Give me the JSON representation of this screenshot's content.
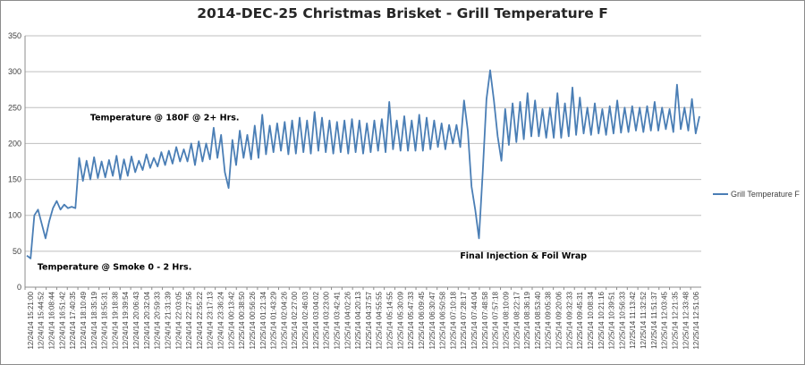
{
  "chart_data": {
    "type": "line",
    "title": "2014-DEC-25 Christmas Brisket - Grill Temperature F",
    "xlabel": "",
    "ylabel": "",
    "ylim": [
      0,
      350
    ],
    "y_ticks": [
      0,
      50,
      100,
      150,
      200,
      250,
      300,
      350
    ],
    "grid": "horizontal",
    "legend_placement": "right",
    "series_color": "#4a7eb5",
    "x_tick_labels": [
      "12/24/14 15:21:00",
      "12/24/14 15:44:52",
      "12/24/14 16:08:44",
      "12/24/14 16:51:42",
      "12/24/14 17:40:35",
      "12/24/14 18:10:49",
      "12/24/14 18:35:19",
      "12/24/14 18:55:31",
      "12/24/14 19:18:38",
      "12/24/14 19:39:54",
      "12/24/14 20:06:43",
      "12/24/14 20:32:04",
      "12/24/14 20:59:33",
      "12/24/14 21:31:39",
      "12/24/14 22:03:05",
      "12/24/14 22:27:56",
      "12/24/14 22:55:22",
      "12/24/14 23:17:13",
      "12/24/14 23:36:24",
      "12/25/14 00:13:42",
      "12/25/14 00:38:50",
      "12/25/14 00:56:26",
      "12/25/14 01:21:34",
      "12/25/14 01:43:29",
      "12/25/14 02:04:26",
      "12/25/14 02:27:00",
      "12/25/14 02:46:03",
      "12/25/14 03:04:02",
      "12/25/14 03:23:00",
      "12/25/14 03:42:41",
      "12/25/14 04:02:26",
      "12/25/14 04:20:13",
      "12/25/14 04:37:57",
      "12/25/14 04:55:55",
      "12/25/14 05:14:55",
      "12/25/14 05:30:09",
      "12/25/14 05:47:33",
      "12/25/14 06:09:45",
      "12/25/14 06:30:47",
      "12/25/14 06:50:58",
      "12/25/14 07:10:18",
      "12/25/14 07:28:17",
      "12/25/14 07:44:04",
      "12/25/14 07:48:58",
      "12/25/14 07:57:18",
      "12/25/14 08:10:09",
      "12/25/14 08:22:17",
      "12/25/14 08:36:19",
      "12/25/14 08:53:40",
      "12/25/14 09:05:38",
      "12/25/14 09:20:06",
      "12/25/14 09:32:33",
      "12/25/14 09:45:31",
      "12/25/14 10:08:34",
      "12/25/14 10:21:16",
      "12/25/14 10:39:51",
      "12/25/14 10:56:33",
      "12/25/14 11:13:42",
      "12/25/14 11:32:52",
      "12/25/14 11:51:37",
      "12/25/14 12:03:45",
      "12/25/14 12:21:35",
      "12/25/14 12:33:48",
      "12/25/14 12:51:06"
    ],
    "series": [
      {
        "name": "Grill Temperature F",
        "values": [
          44,
          40,
          100,
          108,
          88,
          68,
          92,
          110,
          120,
          108,
          115,
          110,
          112,
          110,
          180,
          148,
          176,
          150,
          181,
          152,
          175,
          153,
          177,
          155,
          183,
          150,
          178,
          155,
          182,
          160,
          176,
          163,
          185,
          166,
          180,
          168,
          188,
          170,
          190,
          172,
          195,
          175,
          192,
          175,
          200,
          170,
          203,
          175,
          200,
          178,
          222,
          180,
          212,
          160,
          138,
          205,
          170,
          218,
          180,
          212,
          178,
          225,
          180,
          240,
          185,
          225,
          188,
          228,
          190,
          230,
          185,
          232,
          186,
          236,
          188,
          232,
          186,
          244,
          190,
          236,
          188,
          232,
          186,
          230,
          188,
          232,
          186,
          234,
          188,
          232,
          186,
          228,
          188,
          232,
          190,
          234,
          188,
          258,
          192,
          232,
          190,
          238,
          190,
          232,
          190,
          240,
          190,
          236,
          192,
          232,
          195,
          228,
          192,
          226,
          200,
          226,
          195,
          260,
          218,
          140,
          108,
          68,
          160,
          262,
          302,
          260,
          210,
          176,
          248,
          198,
          256,
          202,
          258,
          206,
          270,
          210,
          260,
          210,
          248,
          208,
          250,
          208,
          270,
          208,
          256,
          210,
          278,
          212,
          264,
          214,
          250,
          212,
          256,
          214,
          248,
          212,
          252,
          214,
          260,
          215,
          250,
          216,
          252,
          218,
          250,
          216,
          252,
          218,
          258,
          218,
          250,
          220,
          248,
          216,
          282,
          220,
          250,
          218,
          262,
          214,
          238
        ]
      }
    ],
    "annotations": [
      {
        "text": "Temperature @ 180F @ 2+ Hrs.",
        "x_label": "12/24/14 18:35:19",
        "y": 232
      },
      {
        "text": "Final Injection & Foil Wrap",
        "x_label": "12/25/14 07:28:17",
        "y": 40
      },
      {
        "text": "Temperature @ Smoke 0 - 2 Hrs.",
        "x_label": "12/24/14 15:44:52",
        "y": 24
      }
    ]
  }
}
